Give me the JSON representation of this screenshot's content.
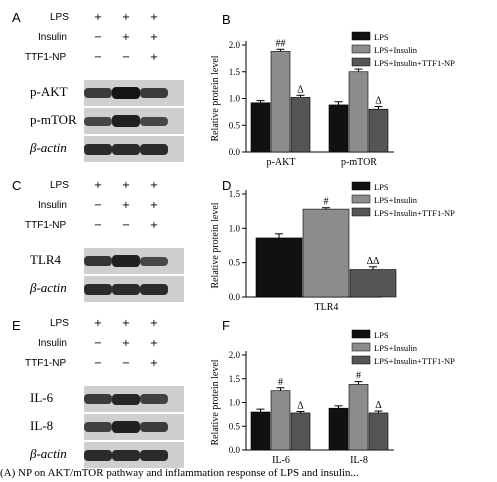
{
  "colors": {
    "lps": "#111111",
    "insulin": "#8c8c8c",
    "ttf": "#555555"
  },
  "blots": [
    {
      "panel": "A",
      "top": 12,
      "treatments": [
        {
          "name": "LPS",
          "signs": [
            "+",
            "+",
            "+"
          ]
        },
        {
          "name": "Insulin",
          "signs": [
            "−",
            "+",
            "+"
          ]
        },
        {
          "name": "TTF1-NP",
          "signs": [
            "−",
            "−",
            "+"
          ]
        }
      ],
      "bands": [
        {
          "label": "p-AKT"
        },
        {
          "label": "p-mTOR"
        },
        {
          "label": "β-actin"
        }
      ]
    },
    {
      "panel": "C",
      "top": 180,
      "treatments": [
        {
          "name": "LPS",
          "signs": [
            "+",
            "+",
            "+"
          ]
        },
        {
          "name": "Insulin",
          "signs": [
            "−",
            "+",
            "+"
          ]
        },
        {
          "name": "TTF1-NP",
          "signs": [
            "−",
            "−",
            "+"
          ]
        }
      ],
      "bands": [
        {
          "label": "TLR4"
        },
        {
          "label": "β-actin"
        }
      ]
    },
    {
      "panel": "E",
      "top": 318,
      "treatments": [
        {
          "name": "LPS",
          "signs": [
            "+",
            "+",
            "+"
          ]
        },
        {
          "name": "Insulin",
          "signs": [
            "−",
            "+",
            "+"
          ]
        },
        {
          "name": "TTF1-NP",
          "signs": [
            "−",
            "−",
            "+"
          ]
        }
      ],
      "bands": [
        {
          "label": "IL-6"
        },
        {
          "label": "IL-8"
        },
        {
          "label": "β-actin"
        }
      ]
    }
  ],
  "chart_data": [
    {
      "panel": "B",
      "type": "bar",
      "ylabel": "Relative protein level",
      "ylim": [
        0,
        2.0
      ],
      "yticks": [
        "0.0",
        "0.5",
        "1.0",
        "1.5",
        "2.0"
      ],
      "categories": [
        "p-AKT",
        "p-mTOR"
      ],
      "series": [
        {
          "name": "LPS",
          "values": [
            0.92,
            0.88
          ],
          "errors": [
            0.04,
            0.06
          ],
          "marks": [
            "",
            ""
          ]
        },
        {
          "name": "LPS+Insulin",
          "values": [
            1.88,
            1.5
          ],
          "errors": [
            0.04,
            0.05
          ],
          "marks": [
            "##",
            "##"
          ]
        },
        {
          "name": "LPS+Insulin+TTF1-NP",
          "values": [
            1.02,
            0.8
          ],
          "errors": [
            0.04,
            0.05
          ],
          "marks": [
            "Δ",
            "Δ"
          ]
        }
      ]
    },
    {
      "panel": "D",
      "type": "bar",
      "ylabel": "Relative protein level",
      "ylim": [
        0,
        1.5
      ],
      "yticks": [
        "0.0",
        "0.5",
        "1.0",
        "1.5"
      ],
      "categories": [
        "TLR4"
      ],
      "series": [
        {
          "name": "LPS",
          "values": [
            0.86
          ],
          "errors": [
            0.06
          ],
          "marks": [
            ""
          ]
        },
        {
          "name": "LPS+Insulin",
          "values": [
            1.28
          ],
          "errors": [
            0.02
          ],
          "marks": [
            "#"
          ]
        },
        {
          "name": "LPS+Insulin+TTF1-NP",
          "values": [
            0.4
          ],
          "errors": [
            0.04
          ],
          "marks": [
            "ΔΔ"
          ]
        }
      ]
    },
    {
      "panel": "F",
      "type": "bar",
      "ylabel": "Relative protein level",
      "ylim": [
        0,
        2.0
      ],
      "yticks": [
        "0.0",
        "0.5",
        "1.0",
        "1.5",
        "2.0"
      ],
      "categories": [
        "IL-6",
        "IL-8"
      ],
      "series": [
        {
          "name": "LPS",
          "values": [
            0.8,
            0.88
          ],
          "errors": [
            0.06,
            0.05
          ],
          "marks": [
            "",
            ""
          ]
        },
        {
          "name": "LPS+Insulin",
          "values": [
            1.25,
            1.38
          ],
          "errors": [
            0.06,
            0.06
          ],
          "marks": [
            "#",
            "#"
          ]
        },
        {
          "name": "LPS+Insulin+TTF1-NP",
          "values": [
            0.78,
            0.78
          ],
          "errors": [
            0.03,
            0.04
          ],
          "marks": [
            "Δ",
            "Δ"
          ]
        }
      ]
    }
  ],
  "caption": "(A) NP on AKT/mTOR pathway and inflammation response of LPS and insulin..."
}
